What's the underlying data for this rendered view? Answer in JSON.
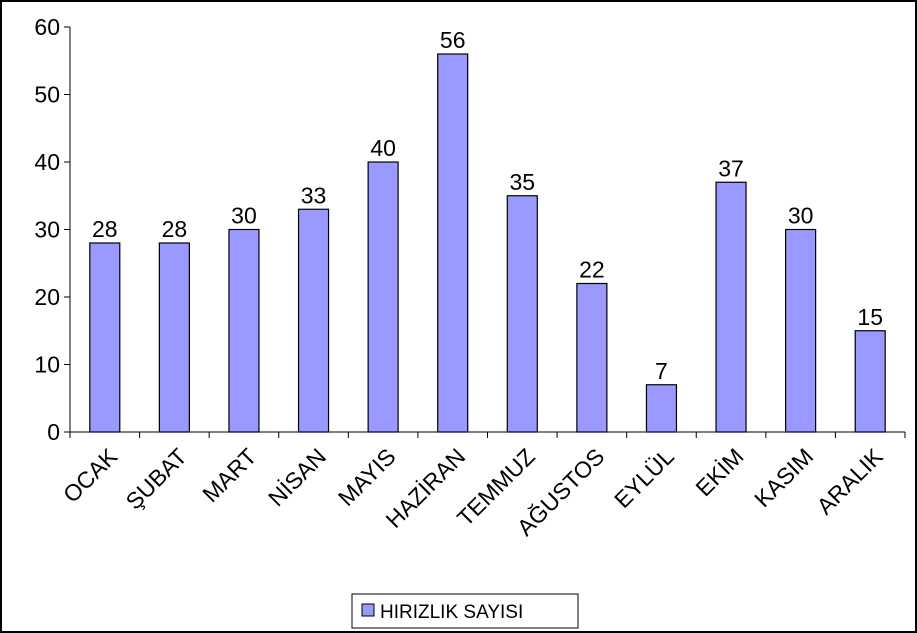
{
  "chart_data": {
    "type": "bar",
    "categories": [
      "OCAK",
      "ŞUBAT",
      "MART",
      "NİSAN",
      "MAYIS",
      "HAZİRAN",
      "TEMMUZ",
      "AĞUSTOS",
      "EYLÜL",
      "EKİM",
      "KASIM",
      "ARALIK"
    ],
    "series": [
      {
        "name": "HIRIZLIK SAYISI",
        "color": "#9999ff",
        "values": [
          28,
          28,
          30,
          33,
          40,
          56,
          35,
          22,
          7,
          37,
          30,
          15
        ]
      }
    ],
    "ylim": [
      0,
      60
    ],
    "yticks": [
      0,
      10,
      20,
      30,
      40,
      50,
      60
    ],
    "grid": false,
    "legend": "bottom"
  }
}
